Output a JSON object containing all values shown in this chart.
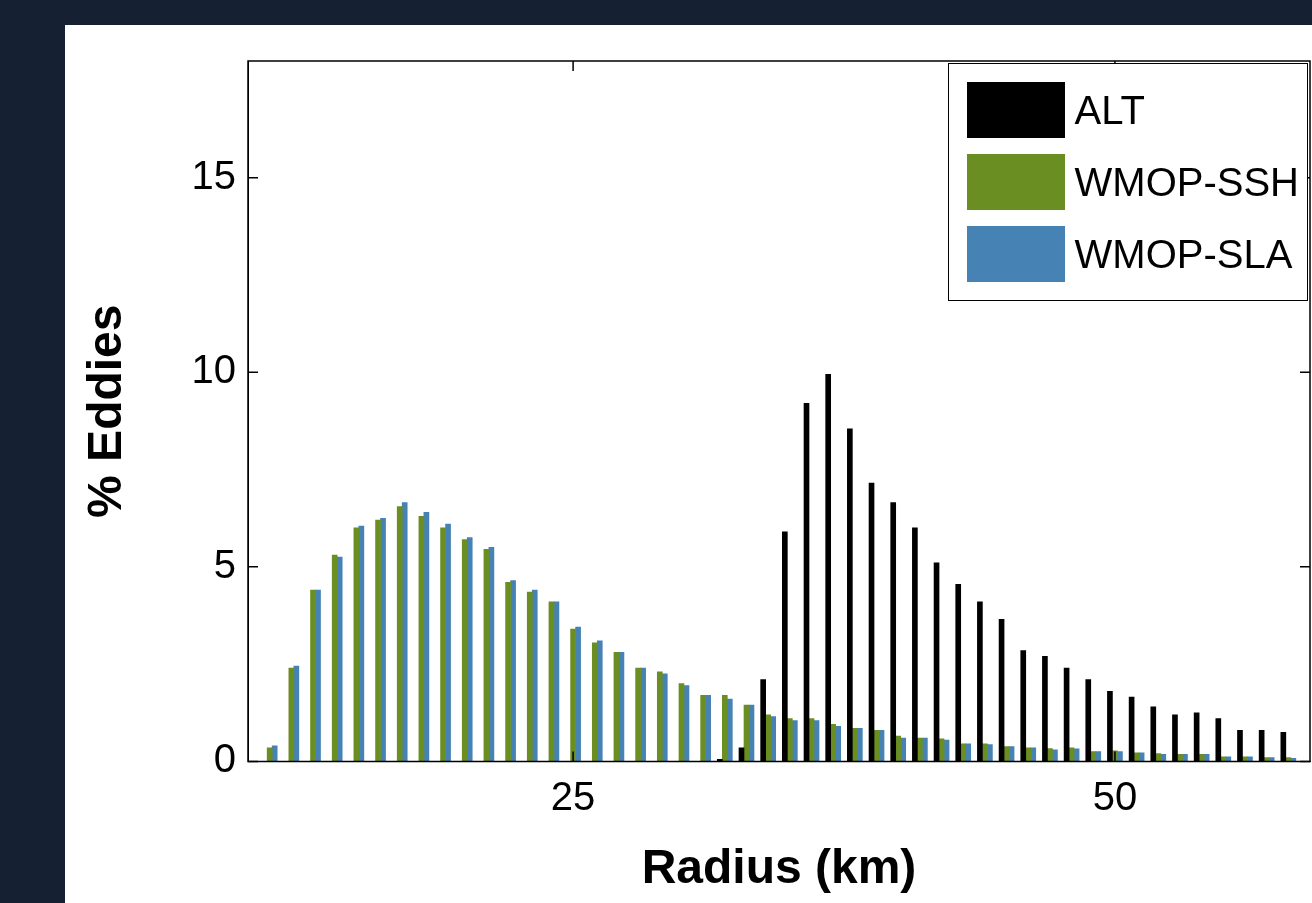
{
  "chart_data": {
    "type": "bar",
    "xlabel": "Radius (km)",
    "ylabel": "% Eddies",
    "x": [
      11,
      12,
      13,
      14,
      15,
      16,
      17,
      18,
      19,
      20,
      21,
      22,
      23,
      24,
      25,
      26,
      27,
      28,
      29,
      30,
      31,
      32,
      33,
      34,
      35,
      36,
      37,
      38,
      39,
      40,
      41,
      42,
      43,
      44,
      45,
      46,
      47,
      48,
      49,
      50,
      51,
      52,
      53,
      54,
      55,
      56,
      57,
      58
    ],
    "series": [
      {
        "name": "ALT",
        "color": "#000000",
        "values": [
          0,
          0,
          0,
          0,
          0,
          0,
          0,
          0,
          0,
          0,
          0,
          0,
          0,
          0,
          0,
          0,
          0,
          0,
          0,
          0,
          0,
          0.05,
          0.35,
          2.1,
          5.9,
          9.2,
          9.95,
          8.55,
          7.15,
          6.65,
          6.0,
          5.1,
          4.55,
          4.1,
          3.65,
          2.85,
          2.7,
          2.4,
          2.1,
          1.8,
          1.65,
          1.4,
          1.2,
          1.25,
          1.1,
          0.8,
          0.8,
          0.75
        ]
      },
      {
        "name": "WMOP-SSH",
        "color": "#6b8e23",
        "values": [
          0.35,
          2.4,
          4.4,
          5.3,
          6.0,
          6.2,
          6.55,
          6.3,
          6.0,
          5.7,
          5.45,
          4.6,
          4.35,
          4.1,
          3.4,
          3.05,
          2.8,
          2.4,
          2.3,
          2.0,
          1.7,
          1.7,
          1.45,
          1.2,
          1.1,
          1.1,
          0.95,
          0.85,
          0.8,
          0.65,
          0.6,
          0.58,
          0.45,
          0.45,
          0.38,
          0.35,
          0.33,
          0.35,
          0.25,
          0.27,
          0.22,
          0.2,
          0.18,
          0.18,
          0.12,
          0.12,
          0.1,
          0.1
        ]
      },
      {
        "name": "WMOP-SLA",
        "color": "#4682b4",
        "values": [
          0.4,
          2.45,
          4.4,
          5.25,
          6.05,
          6.25,
          6.65,
          6.4,
          6.1,
          5.75,
          5.5,
          4.65,
          4.4,
          4.1,
          3.45,
          3.1,
          2.8,
          2.4,
          2.25,
          1.95,
          1.7,
          1.6,
          1.45,
          1.15,
          1.05,
          1.05,
          0.9,
          0.85,
          0.8,
          0.6,
          0.6,
          0.55,
          0.45,
          0.43,
          0.38,
          0.35,
          0.3,
          0.32,
          0.25,
          0.25,
          0.22,
          0.18,
          0.18,
          0.18,
          0.12,
          0.12,
          0.1,
          0.08
        ]
      }
    ],
    "xlim": [
      10,
      59
    ],
    "xticks": [
      25,
      50
    ],
    "ylim": [
      0,
      18
    ],
    "yticks": [
      0,
      5,
      10,
      15
    ],
    "grid": false,
    "legend": "top right"
  }
}
